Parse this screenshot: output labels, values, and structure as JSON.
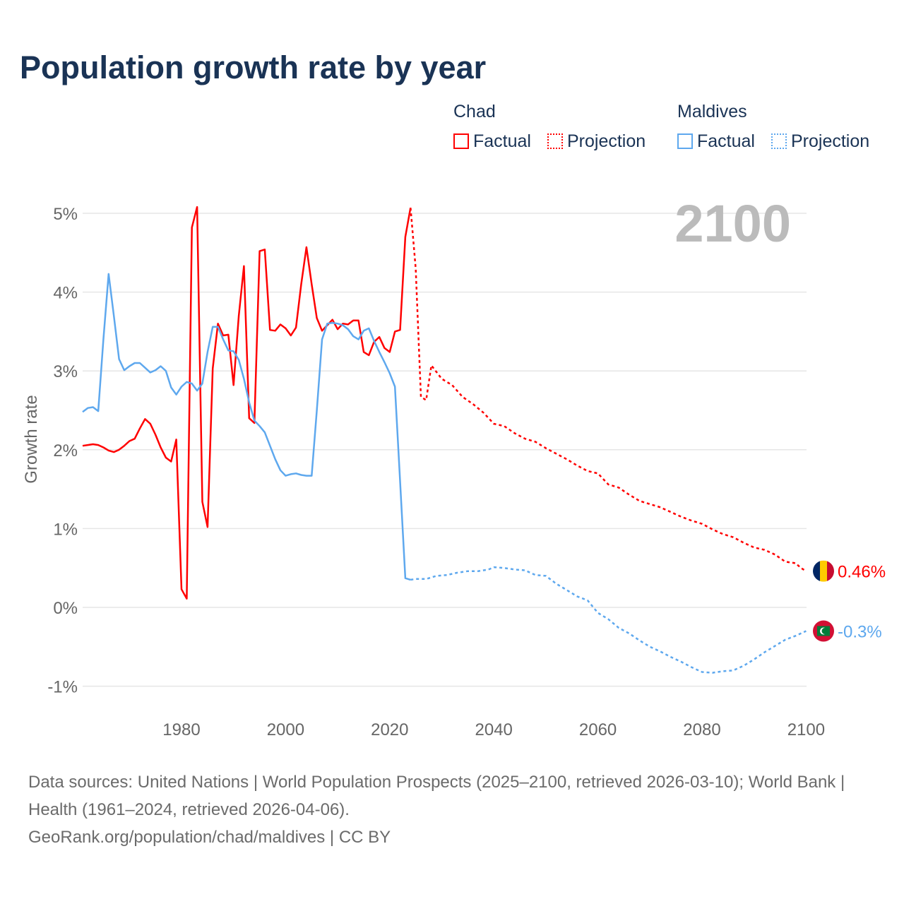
{
  "title": "Population growth rate by year",
  "legend": {
    "groups": [
      {
        "name": "Chad",
        "factual": "Factual",
        "projection": "Projection",
        "color": "#ff0000"
      },
      {
        "name": "Maldives",
        "factual": "Factual",
        "projection": "Projection",
        "color": "#5ea8ee"
      }
    ]
  },
  "year_label": "2100",
  "footer": {
    "line1": "Data sources: United Nations | World Population Prospects (2025–2100, retrieved 2026-03-10); World Bank | Health (1961–2024, retrieved 2026-04-06).",
    "line2": "GeoRank.org/population/chad/maldives | CC BY"
  },
  "chart_data": {
    "type": "line",
    "title": "Population growth rate by year",
    "ylabel": "Growth rate",
    "xlabel": "",
    "xlim": [
      1961,
      2100
    ],
    "ylim": [
      -1.2,
      5.2
    ],
    "xticks": [
      1980,
      2000,
      2020,
      2040,
      2060,
      2080,
      2100
    ],
    "yticks": [
      {
        "v": 5,
        "label": "5%"
      },
      {
        "v": 4,
        "label": "4%"
      },
      {
        "v": 3,
        "label": "3%"
      },
      {
        "v": 2,
        "label": "2%"
      },
      {
        "v": 1,
        "label": "1%"
      },
      {
        "v": 0,
        "label": "0%"
      },
      {
        "v": -1,
        "label": "-1%"
      }
    ],
    "grid": true,
    "series": [
      {
        "name": "Chad Factual",
        "color": "#ff0000",
        "dashed": false,
        "x_start": 1961,
        "values": [
          2.05,
          2.06,
          2.07,
          2.06,
          2.03,
          1.99,
          1.97,
          2.0,
          2.05,
          2.11,
          2.14,
          2.27,
          2.39,
          2.33,
          2.19,
          2.03,
          1.9,
          1.85,
          2.13,
          0.23,
          0.11,
          4.82,
          5.08,
          1.34,
          1.02,
          3.03,
          3.6,
          3.45,
          3.46,
          2.82,
          3.7,
          4.33,
          2.4,
          2.34,
          4.52,
          4.54,
          3.52,
          3.51,
          3.59,
          3.54,
          3.45,
          3.55,
          4.1,
          4.57,
          4.1,
          3.67,
          3.51,
          3.58,
          3.65,
          3.53,
          3.6,
          3.59,
          3.64,
          3.64,
          3.24,
          3.2,
          3.37,
          3.43,
          3.29,
          3.24,
          3.5,
          3.52,
          4.7,
          5.07
        ]
      },
      {
        "name": "Chad Projection",
        "color": "#ff0000",
        "dashed": true,
        "x": [
          2024,
          2025,
          2026,
          2027,
          2028,
          2030,
          2032,
          2034,
          2036,
          2038,
          2040,
          2042,
          2044,
          2046,
          2048,
          2050,
          2052,
          2054,
          2056,
          2058,
          2060,
          2062,
          2064,
          2066,
          2068,
          2070,
          2072,
          2074,
          2076,
          2078,
          2080,
          2082,
          2084,
          2086,
          2088,
          2090,
          2092,
          2094,
          2096,
          2098,
          2099,
          2100
        ],
        "y": [
          5.07,
          4.3,
          2.67,
          2.63,
          3.07,
          2.9,
          2.82,
          2.67,
          2.58,
          2.47,
          2.33,
          2.3,
          2.21,
          2.14,
          2.1,
          2.02,
          1.95,
          1.88,
          1.8,
          1.73,
          1.7,
          1.56,
          1.52,
          1.43,
          1.35,
          1.31,
          1.27,
          1.21,
          1.15,
          1.1,
          1.06,
          0.99,
          0.93,
          0.89,
          0.82,
          0.76,
          0.73,
          0.67,
          0.58,
          0.56,
          0.5,
          0.46
        ]
      },
      {
        "name": "Maldives Factual",
        "color": "#5ea8ee",
        "dashed": false,
        "x_start": 1961,
        "values": [
          2.48,
          2.53,
          2.54,
          2.49,
          3.4,
          4.23,
          3.7,
          3.15,
          3.01,
          3.06,
          3.1,
          3.1,
          3.04,
          2.98,
          3.01,
          3.06,
          3.0,
          2.79,
          2.7,
          2.8,
          2.86,
          2.84,
          2.75,
          2.84,
          3.24,
          3.56,
          3.56,
          3.4,
          3.26,
          3.25,
          3.14,
          2.9,
          2.6,
          2.37,
          2.3,
          2.22,
          2.05,
          1.88,
          1.74,
          1.67,
          1.69,
          1.7,
          1.68,
          1.67,
          1.67,
          2.5,
          3.4,
          3.6,
          3.61,
          3.6,
          3.58,
          3.53,
          3.44,
          3.4,
          3.51,
          3.54,
          3.38,
          3.24,
          3.11,
          2.97,
          2.8,
          1.6,
          0.37,
          0.35
        ]
      },
      {
        "name": "Maldives Projection",
        "color": "#5ea8ee",
        "dashed": true,
        "x": [
          2024,
          2025,
          2027,
          2029,
          2031,
          2033,
          2035,
          2037,
          2039,
          2040,
          2042,
          2044,
          2046,
          2048,
          2050,
          2052,
          2054,
          2056,
          2058,
          2060,
          2062,
          2064,
          2066,
          2068,
          2070,
          2072,
          2074,
          2076,
          2078,
          2080,
          2082,
          2084,
          2086,
          2088,
          2090,
          2092,
          2094,
          2096,
          2098,
          2100
        ],
        "y": [
          0.35,
          0.36,
          0.36,
          0.4,
          0.41,
          0.44,
          0.46,
          0.46,
          0.48,
          0.51,
          0.5,
          0.48,
          0.47,
          0.41,
          0.4,
          0.3,
          0.22,
          0.14,
          0.09,
          -0.07,
          -0.15,
          -0.26,
          -0.33,
          -0.42,
          -0.5,
          -0.56,
          -0.63,
          -0.69,
          -0.76,
          -0.82,
          -0.83,
          -0.81,
          -0.8,
          -0.74,
          -0.66,
          -0.57,
          -0.49,
          -0.41,
          -0.36,
          -0.3
        ]
      }
    ],
    "end_labels": [
      {
        "country": "Chad",
        "label": "0.46%",
        "value": 0.46,
        "color": "#ff0000"
      },
      {
        "country": "Maldives",
        "label": "-0.3%",
        "value": -0.3,
        "color": "#5ea8ee"
      }
    ]
  }
}
